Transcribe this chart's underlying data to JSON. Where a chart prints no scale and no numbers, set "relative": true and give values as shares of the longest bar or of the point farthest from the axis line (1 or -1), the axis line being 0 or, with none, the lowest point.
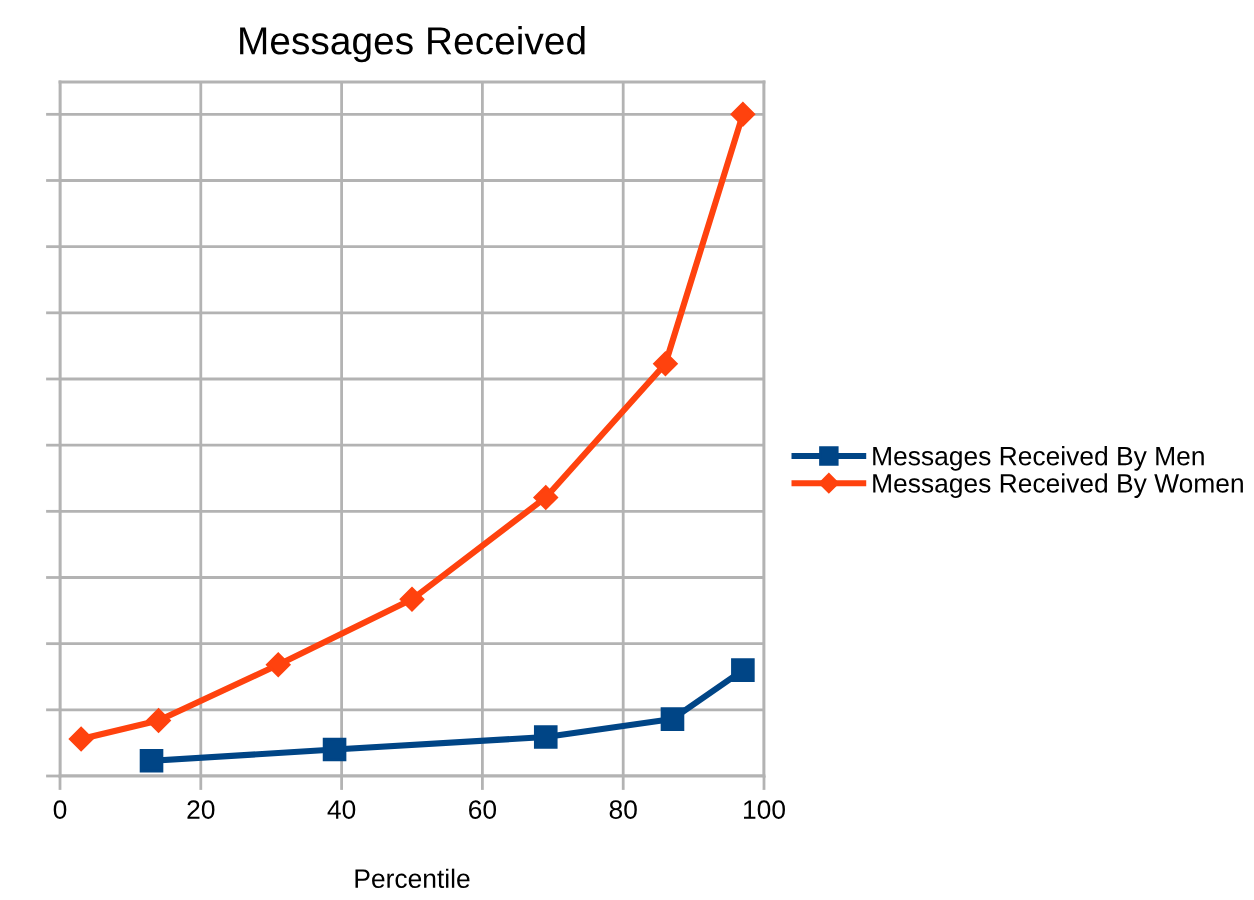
{
  "chart_data": {
    "type": "line",
    "title": "Messages Received",
    "xlabel": "Percentile",
    "relative": true,
    "xlim": [
      0,
      100
    ],
    "xticks": [
      0,
      20,
      40,
      60,
      80,
      100
    ],
    "grid": true,
    "legend": "right",
    "line_style": "solid",
    "series": [
      {
        "name": "Messages Received By Men",
        "color": "#004586",
        "marker": "square",
        "x": [
          13,
          39,
          69,
          87,
          97
        ],
        "values": [
          0.023,
          0.04,
          0.059,
          0.086,
          0.16
        ]
      },
      {
        "name": "Messages Received By Women",
        "color": "#ff420e",
        "marker": "diamond",
        "x": [
          3,
          14,
          31,
          50,
          69,
          86,
          97
        ],
        "values": [
          0.056,
          0.084,
          0.168,
          0.267,
          0.421,
          0.623,
          1
        ]
      }
    ]
  }
}
